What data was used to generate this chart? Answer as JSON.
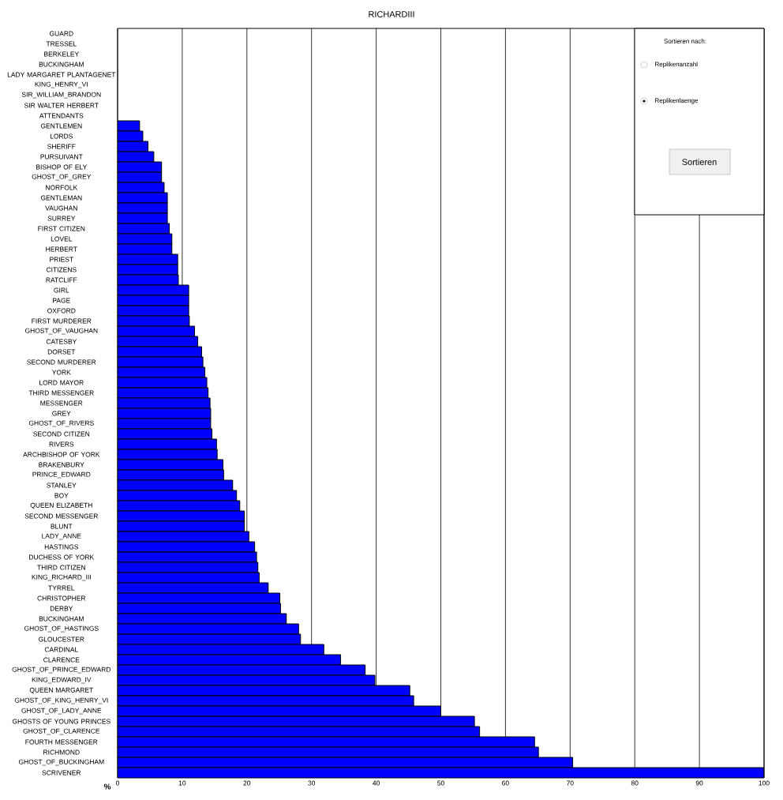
{
  "chart_data": {
    "type": "bar",
    "orientation": "horizontal",
    "title": "RICHARDIII",
    "xlabel": "%",
    "categories": [
      "GUARD",
      "TRESSEL",
      "BERKELEY",
      "BUCKINGHAM",
      "LADY MARGARET PLANTAGENET",
      "KING_HENRY_VI",
      "SIR_WILLIAM_BRANDON",
      "SIR WALTER HERBERT",
      "ATTENDANTS",
      "GENTLEMEN",
      "LORDS",
      "SHERIFF",
      "PURSUIVANT",
      "BISHOP OF ELY",
      "GHOST_OF_GREY",
      "NORFOLK",
      "GENTLEMAN",
      "VAUGHAN",
      "SURREY",
      "FIRST CITIZEN",
      "LOVEL",
      "HERBERT",
      "PRIEST",
      "CITIZENS",
      "RATCLIFF",
      "GIRL",
      "PAGE",
      "OXFORD",
      "FIRST MURDERER",
      "GHOST_OF_VAUGHAN",
      "CATESBY",
      "DORSET",
      "SECOND MURDERER",
      "YORK",
      "LORD MAYOR",
      "THIRD MESSENGER",
      "MESSENGER",
      "GREY",
      "GHOST_OF_RIVERS",
      "SECOND CITIZEN",
      "RIVERS",
      "ARCHBISHOP OF YORK",
      "BRAKENBURY",
      "PRINCE_EDWARD",
      "STANLEY",
      "BOY",
      "QUEEN ELIZABETH",
      "SECOND MESSENGER",
      "BLUNT",
      "LADY_ANNE",
      "HASTINGS",
      "DUCHESS OF YORK",
      "THIRD CITIZEN",
      "KING_RICHARD_III",
      "TYRREL",
      "CHRISTOPHER",
      "DERBY",
      "BUCKINGHAM",
      "GHOST_OF_HASTINGS",
      "GLOUCESTER",
      "CARDINAL",
      "CLARENCE",
      "GHOST_OF_PRINCE_EDWARD",
      "KING_EDWARD_IV",
      "QUEEN MARGARET",
      "GHOST_OF_KING_HENRY_VI",
      "GHOST_OF_LADY_ANNE",
      "GHOSTS OF YOUNG PRINCES",
      "GHOST_OF_CLARENCE",
      "FOURTH MESSENGER",
      "RICHMOND",
      "GHOST_OF_BUCKINGHAM",
      "SCRIVENER"
    ],
    "values": [
      0,
      0,
      0,
      0,
      0,
      0,
      0,
      0,
      0,
      3.4,
      3.9,
      4.7,
      5.6,
      6.8,
      6.8,
      7.2,
      7.7,
      7.7,
      7.7,
      8.0,
      8.4,
      8.4,
      9.3,
      9.3,
      9.4,
      11.0,
      11.0,
      11.0,
      11.1,
      11.9,
      12.4,
      13.0,
      13.2,
      13.5,
      13.8,
      14.0,
      14.3,
      14.4,
      14.4,
      14.6,
      15.3,
      15.4,
      16.3,
      16.4,
      17.8,
      18.4,
      18.9,
      19.6,
      19.6,
      20.3,
      21.2,
      21.5,
      21.7,
      21.9,
      23.3,
      25.1,
      25.2,
      26.1,
      28.0,
      28.3,
      31.9,
      34.5,
      38.3,
      39.8,
      45.2,
      45.8,
      50.0,
      55.2,
      56.0,
      64.5,
      65.1,
      70.4,
      100
    ],
    "color": "#0000ff",
    "xlim": [
      0,
      100
    ],
    "xticks": [
      0,
      10,
      20,
      30,
      40,
      50,
      60,
      70,
      80,
      90,
      100
    ],
    "grid": "x",
    "annotations": [
      "Sortieren nach:",
      "Replikenanzahl",
      "Replikenlaenge",
      "Sortieren"
    ]
  }
}
